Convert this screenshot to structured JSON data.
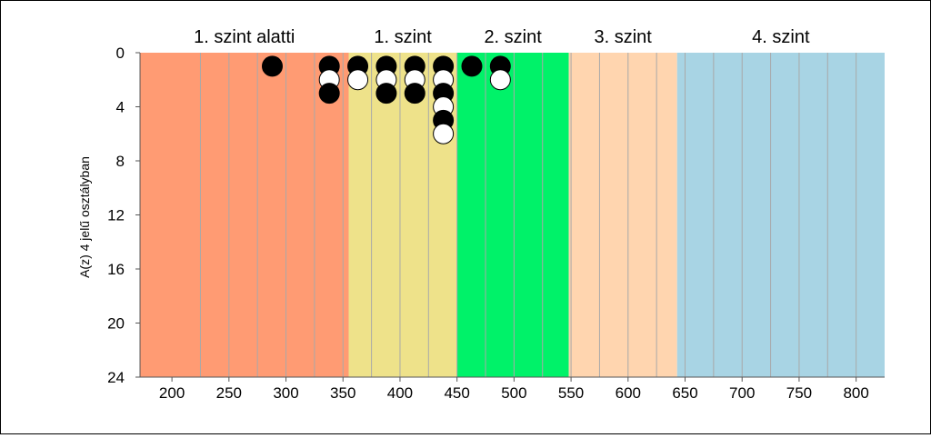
{
  "chart_data": {
    "type": "scatter",
    "ylabel": "A(z) 4 jelű osztályban",
    "x_ticks": [
      "200",
      "250",
      "300",
      "350",
      "400",
      "450",
      "500",
      "550",
      "600",
      "650",
      "700",
      "750",
      "800"
    ],
    "x_tick_values": [
      200,
      250,
      300,
      350,
      400,
      450,
      500,
      550,
      600,
      650,
      700,
      750,
      800
    ],
    "y_ticks": [
      "0",
      "4",
      "8",
      "12",
      "16",
      "20",
      "24"
    ],
    "y_tick_values": [
      0,
      4,
      8,
      12,
      16,
      20,
      24
    ],
    "xlim": [
      172,
      825
    ],
    "ylim": [
      0,
      24
    ],
    "y_inverted": true,
    "levels": [
      {
        "label": "1. szint alatti",
        "from": 172,
        "to": 355,
        "color": "#ff9b73"
      },
      {
        "label": "1. szint",
        "from": 355,
        "to": 450,
        "color": "#eee28a"
      },
      {
        "label": "2. szint",
        "from": 450,
        "to": 548,
        "color": "#00f269"
      },
      {
        "label": "3. szint",
        "from": 548,
        "to": 643,
        "color": "#ffd5af"
      },
      {
        "label": "4. szint",
        "from": 643,
        "to": 825,
        "color": "#a8d4e4"
      }
    ],
    "minor_gridlines": [
      225,
      250,
      275,
      300,
      325,
      350,
      375,
      400,
      425,
      450,
      475,
      500,
      525,
      550,
      575,
      600,
      625,
      650,
      675,
      700,
      725,
      750,
      775,
      800
    ],
    "points": [
      {
        "x": 288,
        "y": 1,
        "color": "black"
      },
      {
        "x": 338,
        "y": 1,
        "color": "black"
      },
      {
        "x": 338,
        "y": 2,
        "color": "white"
      },
      {
        "x": 338,
        "y": 3,
        "color": "black"
      },
      {
        "x": 363,
        "y": 1,
        "color": "black"
      },
      {
        "x": 363,
        "y": 2,
        "color": "white"
      },
      {
        "x": 388,
        "y": 1,
        "color": "black"
      },
      {
        "x": 388,
        "y": 2,
        "color": "white"
      },
      {
        "x": 388,
        "y": 3,
        "color": "black"
      },
      {
        "x": 413,
        "y": 1,
        "color": "black"
      },
      {
        "x": 413,
        "y": 2,
        "color": "white"
      },
      {
        "x": 413,
        "y": 3,
        "color": "black"
      },
      {
        "x": 438,
        "y": 1,
        "color": "black"
      },
      {
        "x": 438,
        "y": 2,
        "color": "white"
      },
      {
        "x": 438,
        "y": 3,
        "color": "black"
      },
      {
        "x": 438,
        "y": 4,
        "color": "white"
      },
      {
        "x": 438,
        "y": 5,
        "color": "black"
      },
      {
        "x": 438,
        "y": 6,
        "color": "white"
      },
      {
        "x": 463,
        "y": 1,
        "color": "black"
      },
      {
        "x": 488,
        "y": 1,
        "color": "black"
      },
      {
        "x": 488,
        "y": 2,
        "color": "white"
      }
    ]
  }
}
